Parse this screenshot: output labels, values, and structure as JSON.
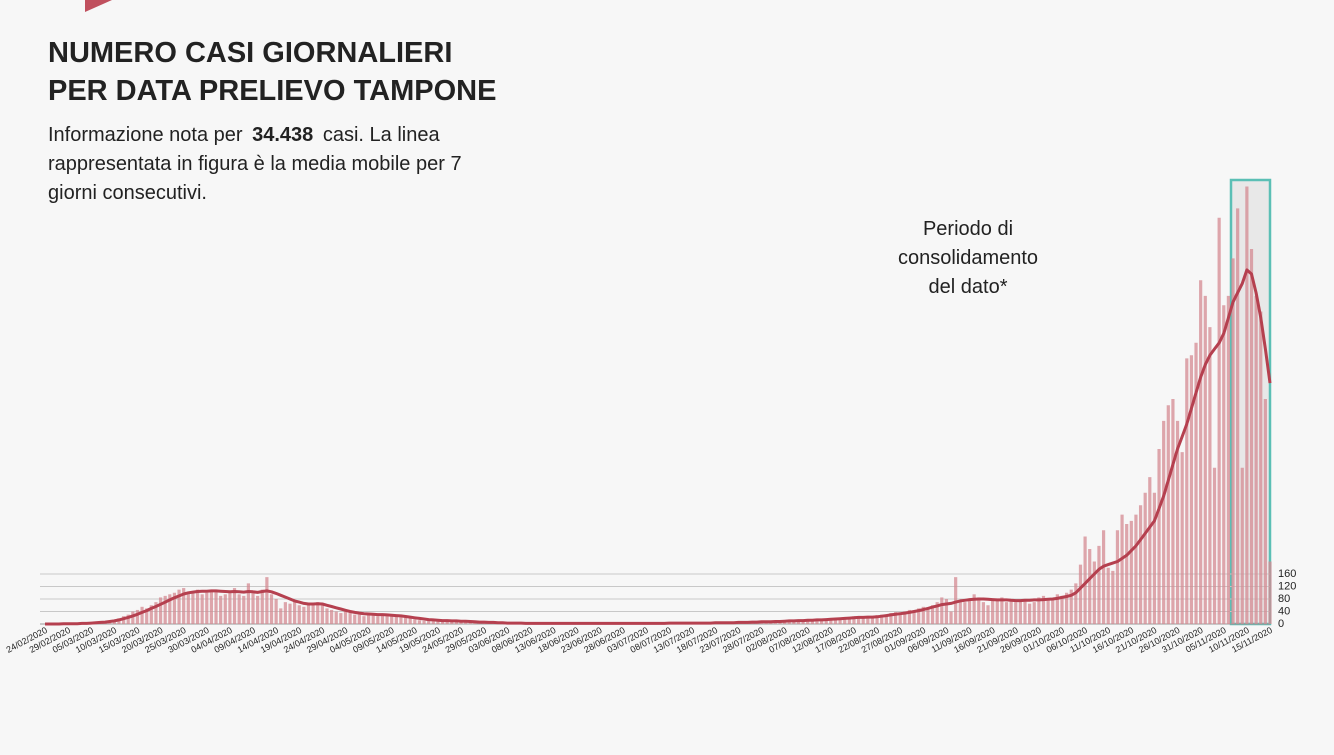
{
  "chart_data": {
    "type": "bar",
    "title": [
      "NUMERO CASI GIORNALIERI",
      "PER DATA PRELIEVO TAMPONE"
    ],
    "subtitle": [
      "Informazione nota per",
      "34.438",
      "casi. La linea",
      "rappresentata in figura è la media mobile per 7",
      "giorni consecutivi."
    ],
    "annotation": [
      "Periodo di",
      "consolidamento",
      "del dato*"
    ],
    "categories": [
      "24/02/2020",
      null,
      null,
      null,
      null,
      "29/02/2020",
      null,
      null,
      null,
      null,
      "05/03/2020",
      null,
      null,
      null,
      null,
      "10/03/2020",
      null,
      null,
      null,
      null,
      "15/03/2020",
      null,
      null,
      null,
      null,
      "20/03/2020",
      null,
      null,
      null,
      null,
      "25/03/2020",
      null,
      null,
      null,
      null,
      "30/03/2020",
      null,
      null,
      null,
      null,
      "04/04/2020",
      null,
      null,
      null,
      null,
      "09/04/2020",
      null,
      null,
      null,
      null,
      "14/04/2020",
      null,
      null,
      null,
      null,
      "19/04/2020",
      null,
      null,
      null,
      null,
      "24/04/2020",
      null,
      null,
      null,
      null,
      "29/04/2020",
      null,
      null,
      null,
      null,
      "04/05/2020",
      null,
      null,
      null,
      null,
      "09/05/2020",
      null,
      null,
      null,
      null,
      "14/05/2020",
      null,
      null,
      null,
      null,
      "19/05/2020",
      null,
      null,
      null,
      null,
      "24/05/2020",
      null,
      null,
      null,
      null,
      "29/05/2020",
      null,
      null,
      null,
      null,
      "03/06/2020",
      null,
      null,
      null,
      null,
      "08/06/2020",
      null,
      null,
      null,
      null,
      "13/06/2020",
      null,
      null,
      null,
      null,
      "18/06/2020",
      null,
      null,
      null,
      null,
      "23/06/2020",
      null,
      null,
      null,
      null,
      "28/06/2020",
      null,
      null,
      null,
      null,
      "03/07/2020",
      null,
      null,
      null,
      null,
      "08/07/2020",
      null,
      null,
      null,
      null,
      "13/07/2020",
      null,
      null,
      null,
      null,
      "18/07/2020",
      null,
      null,
      null,
      null,
      "23/07/2020",
      null,
      null,
      null,
      null,
      "28/07/2020",
      null,
      null,
      null,
      null,
      "02/08/2020",
      null,
      null,
      null,
      null,
      "07/08/2020",
      null,
      null,
      null,
      null,
      "12/08/2020",
      null,
      null,
      null,
      null,
      "17/08/2020",
      null,
      null,
      null,
      null,
      "22/08/2020",
      null,
      null,
      null,
      null,
      "27/08/2020",
      null,
      null,
      null,
      null,
      "01/09/2020",
      null,
      null,
      null,
      null,
      "06/09/2020",
      null,
      null,
      null,
      null,
      "11/09/2020",
      null,
      null,
      null,
      null,
      "16/09/2020",
      null,
      null,
      null,
      null,
      "21/09/2020",
      null,
      null,
      null,
      null,
      "26/09/2020",
      null,
      null,
      null,
      null,
      "01/10/2020",
      null,
      null,
      null,
      null,
      "06/10/2020",
      null,
      null,
      null,
      null,
      "11/10/2020",
      null,
      null,
      null,
      null,
      "16/10/2020",
      null,
      null,
      null,
      null,
      "21/10/2020",
      null,
      null,
      null,
      null,
      "26/10/2020",
      null,
      null,
      null,
      null,
      "31/10/2020",
      null,
      null,
      null,
      null,
      "05/11/2020",
      null,
      null,
      null,
      null,
      "10/11/2020",
      null,
      null,
      null,
      null,
      "15/11/2020"
    ],
    "values": [
      0,
      0,
      1,
      0,
      1,
      1,
      2,
      1,
      2,
      3,
      4,
      5,
      6,
      8,
      10,
      14,
      18,
      25,
      30,
      40,
      45,
      55,
      50,
      60,
      70,
      85,
      90,
      95,
      100,
      110,
      115,
      100,
      105,
      110,
      95,
      100,
      110,
      105,
      90,
      95,
      100,
      115,
      95,
      90,
      130,
      100,
      90,
      110,
      150,
      95,
      80,
      50,
      70,
      65,
      75,
      60,
      55,
      65,
      60,
      70,
      60,
      50,
      45,
      40,
      35,
      40,
      35,
      30,
      30,
      25,
      30,
      28,
      25,
      30,
      27,
      30,
      25,
      22,
      20,
      18,
      15,
      12,
      10,
      12,
      10,
      11,
      9,
      10,
      8,
      8,
      10,
      8,
      7,
      6,
      5,
      6,
      5,
      4,
      4,
      3,
      3,
      3,
      2,
      3,
      2,
      2,
      3,
      2,
      2,
      2,
      2,
      2,
      3,
      2,
      2,
      2,
      2,
      2,
      3,
      2,
      2,
      2,
      2,
      3,
      2,
      2,
      2,
      3,
      2,
      2,
      2,
      3,
      2,
      2,
      3,
      2,
      3,
      3,
      2,
      3,
      3,
      3,
      4,
      3,
      3,
      4,
      4,
      3,
      4,
      5,
      5,
      6,
      5,
      7,
      6,
      8,
      7,
      8,
      9,
      8,
      10,
      9,
      11,
      12,
      10,
      14,
      12,
      11,
      15,
      13,
      18,
      16,
      20,
      22,
      19,
      25,
      21,
      20,
      24,
      22,
      28,
      30,
      26,
      35,
      38,
      32,
      40,
      45,
      42,
      50,
      55,
      48,
      60,
      70,
      85,
      80,
      40,
      150,
      75,
      70,
      80,
      95,
      85,
      70,
      60,
      75,
      80,
      85,
      70,
      75,
      70,
      75,
      80,
      65,
      70,
      85,
      90,
      75,
      80,
      95,
      90,
      100,
      110,
      130,
      190,
      280,
      240,
      200,
      250,
      300,
      180,
      170,
      300,
      350,
      320,
      330,
      350,
      380,
      420,
      470,
      420,
      560,
      650,
      700,
      720,
      650,
      550,
      850,
      860,
      900,
      1100,
      1050,
      950,
      500,
      1300,
      1020,
      1050,
      1170,
      1330,
      500,
      1400,
      1200,
      1050,
      1000,
      720,
      200
    ],
    "color": "#d48a92",
    "line_values": [
      0,
      0,
      0,
      0,
      1,
      1,
      1,
      1,
      2,
      2,
      3,
      4,
      5,
      6,
      8,
      10,
      13,
      17,
      21,
      26,
      31,
      37,
      43,
      50,
      56,
      63,
      70,
      77,
      84,
      90,
      96,
      100,
      102,
      104,
      105,
      105,
      106,
      106,
      105,
      104,
      103,
      104,
      103,
      102,
      104,
      103,
      101,
      104,
      106,
      103,
      98,
      92,
      86,
      80,
      74,
      70,
      66,
      64,
      64,
      65,
      64,
      60,
      56,
      52,
      48,
      44,
      40,
      37,
      35,
      33,
      32,
      31,
      30,
      30,
      29,
      28,
      27,
      26,
      24,
      22,
      20,
      18,
      16,
      14,
      13,
      12,
      11,
      11,
      10,
      10,
      9,
      9,
      8,
      7,
      6,
      6,
      5,
      5,
      4,
      4,
      3,
      3,
      3,
      3,
      2,
      2,
      2,
      2,
      2,
      2,
      2,
      2,
      2,
      2,
      2,
      2,
      2,
      2,
      2,
      2,
      2,
      2,
      2,
      2,
      2,
      2,
      2,
      2,
      2,
      2,
      2,
      2,
      2,
      2,
      2,
      3,
      3,
      3,
      3,
      3,
      3,
      3,
      3,
      3,
      3,
      4,
      4,
      4,
      4,
      4,
      5,
      5,
      5,
      6,
      6,
      7,
      7,
      7,
      8,
      8,
      9,
      10,
      10,
      11,
      11,
      12,
      12,
      13,
      13,
      14,
      15,
      16,
      17,
      18,
      19,
      20,
      21,
      21,
      22,
      22,
      23,
      25,
      27,
      29,
      31,
      33,
      35,
      37,
      40,
      43,
      46,
      50,
      54,
      58,
      62,
      64,
      66,
      70,
      74,
      76,
      78,
      79,
      80,
      80,
      79,
      78,
      77,
      77,
      77,
      76,
      75,
      75,
      76,
      76,
      77,
      77,
      78,
      79,
      80,
      82,
      85,
      88,
      92,
      100,
      115,
      130,
      145,
      160,
      175,
      185,
      190,
      195,
      200,
      210,
      220,
      235,
      250,
      270,
      290,
      310,
      330,
      370,
      410,
      460,
      510,
      560,
      600,
      640,
      690,
      740,
      790,
      830,
      860,
      880,
      900,
      930,
      980,
      1030,
      1060,
      1090,
      1133,
      1120,
      1060,
      980,
      880,
      771
    ],
    "line_color": "#b5404f",
    "ylim": [
      0,
      1440
    ],
    "yticks": [
      0,
      40,
      80,
      120,
      160
    ],
    "grid": true
  }
}
